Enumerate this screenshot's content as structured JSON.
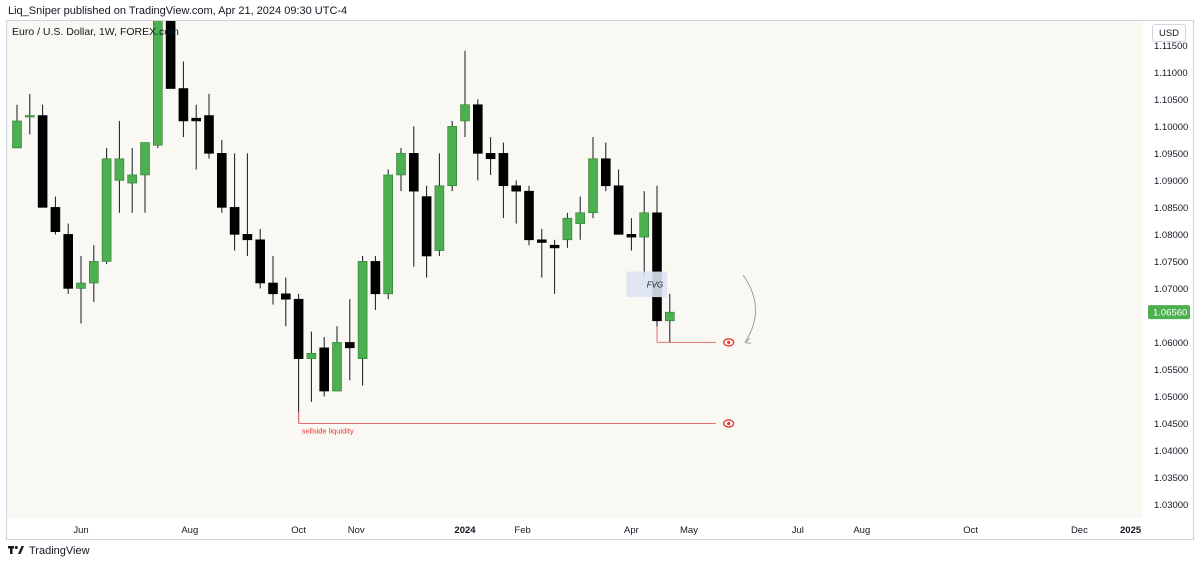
{
  "header": {
    "publish_line": "Liq_Sniper published on TradingView.com, Apr 21, 2024 09:30 UTC-4",
    "symbol_title": "Euro / U.S. Dollar, 1W, FOREX.com",
    "currency": "USD"
  },
  "footer": {
    "brand": "TradingView",
    "logo_icon": "tradingview-logo-icon"
  },
  "colors": {
    "up": "#4caf50",
    "down": "#000000",
    "wick": "#131722",
    "current_price_bg": "#4caf50",
    "liquidity_line": "#e57373",
    "fvg_fill": "#dde3f2",
    "marker": "#e53935",
    "plot_bg": "#faf8f3"
  },
  "chart_data": {
    "type": "candlestick",
    "symbol": "Euro / U.S. Dollar",
    "timeframe": "1W",
    "y_axis": {
      "ticks": [
        "1.11500",
        "1.11000",
        "1.10500",
        "1.10000",
        "1.09500",
        "1.09000",
        "1.08500",
        "1.08000",
        "1.07500",
        "1.07000",
        "1.06500",
        "1.06000",
        "1.05500",
        "1.05000",
        "1.04500",
        "1.04000",
        "1.03500",
        "1.03000"
      ],
      "range": [
        1.0275,
        1.1195
      ]
    },
    "current_price": "1.06560",
    "x_axis": {
      "labels": [
        {
          "text": "Jun",
          "week": 5,
          "bold": false
        },
        {
          "text": "Aug",
          "week": 13.5,
          "bold": false
        },
        {
          "text": "Oct",
          "week": 22,
          "bold": false
        },
        {
          "text": "Nov",
          "week": 26.5,
          "bold": false
        },
        {
          "text": "2024",
          "week": 35,
          "bold": true
        },
        {
          "text": "Feb",
          "week": 39.5,
          "bold": false
        },
        {
          "text": "Apr",
          "week": 48,
          "bold": false
        },
        {
          "text": "May",
          "week": 52.5,
          "bold": false
        },
        {
          "text": "Jul",
          "week": 61,
          "bold": false
        },
        {
          "text": "Aug",
          "week": 66,
          "bold": false
        },
        {
          "text": "Oct",
          "week": 74.5,
          "bold": false
        },
        {
          "text": "Dec",
          "week": 83,
          "bold": false
        },
        {
          "text": "2025",
          "week": 87,
          "bold": true
        }
      ]
    },
    "candles": [
      {
        "o": 1.096,
        "h": 1.104,
        "l": 1.096,
        "c": 1.101
      },
      {
        "o": 1.102,
        "h": 1.106,
        "l": 1.0985,
        "c": 1.102
      },
      {
        "o": 1.102,
        "h": 1.104,
        "l": 1.085,
        "c": 1.085
      },
      {
        "o": 1.085,
        "h": 1.087,
        "l": 1.08,
        "c": 1.0805
      },
      {
        "o": 1.08,
        "h": 1.082,
        "l": 1.069,
        "c": 1.07
      },
      {
        "o": 1.07,
        "h": 1.076,
        "l": 1.0635,
        "c": 1.071
      },
      {
        "o": 1.071,
        "h": 1.078,
        "l": 1.0675,
        "c": 1.075
      },
      {
        "o": 1.075,
        "h": 1.096,
        "l": 1.0745,
        "c": 1.094
      },
      {
        "o": 1.09,
        "h": 1.101,
        "l": 1.084,
        "c": 1.094
      },
      {
        "o": 1.0895,
        "h": 1.096,
        "l": 1.084,
        "c": 1.091
      },
      {
        "o": 1.091,
        "h": 1.097,
        "l": 1.084,
        "c": 1.097
      },
      {
        "o": 1.0965,
        "h": 1.126,
        "l": 1.096,
        "c": 1.122
      },
      {
        "o": 1.122,
        "h": 1.127,
        "l": 1.107,
        "c": 1.107
      },
      {
        "o": 1.107,
        "h": 1.112,
        "l": 1.098,
        "c": 1.101
      },
      {
        "o": 1.1015,
        "h": 1.104,
        "l": 1.092,
        "c": 1.101
      },
      {
        "o": 1.102,
        "h": 1.106,
        "l": 1.094,
        "c": 1.095
      },
      {
        "o": 1.095,
        "h": 1.0975,
        "l": 1.084,
        "c": 1.085
      },
      {
        "o": 1.085,
        "h": 1.095,
        "l": 1.077,
        "c": 1.08
      },
      {
        "o": 1.08,
        "h": 1.095,
        "l": 1.076,
        "c": 1.079
      },
      {
        "o": 1.079,
        "h": 1.081,
        "l": 1.07,
        "c": 1.071
      },
      {
        "o": 1.071,
        "h": 1.076,
        "l": 1.067,
        "c": 1.069
      },
      {
        "o": 1.069,
        "h": 1.072,
        "l": 1.063,
        "c": 1.068
      },
      {
        "o": 1.068,
        "h": 1.069,
        "l": 1.045,
        "c": 1.057
      },
      {
        "o": 1.057,
        "h": 1.062,
        "l": 1.049,
        "c": 1.058
      },
      {
        "o": 1.059,
        "h": 1.061,
        "l": 1.05,
        "c": 1.051
      },
      {
        "o": 1.051,
        "h": 1.063,
        "l": 1.051,
        "c": 1.06
      },
      {
        "o": 1.06,
        "h": 1.068,
        "l": 1.053,
        "c": 1.059
      },
      {
        "o": 1.057,
        "h": 1.076,
        "l": 1.052,
        "c": 1.075
      },
      {
        "o": 1.075,
        "h": 1.076,
        "l": 1.066,
        "c": 1.069
      },
      {
        "o": 1.069,
        "h": 1.092,
        "l": 1.068,
        "c": 1.091
      },
      {
        "o": 1.091,
        "h": 1.096,
        "l": 1.088,
        "c": 1.095
      },
      {
        "o": 1.095,
        "h": 1.1,
        "l": 1.074,
        "c": 1.088
      },
      {
        "o": 1.087,
        "h": 1.089,
        "l": 1.072,
        "c": 1.076
      },
      {
        "o": 1.077,
        "h": 1.095,
        "l": 1.076,
        "c": 1.089
      },
      {
        "o": 1.089,
        "h": 1.101,
        "l": 1.088,
        "c": 1.1
      },
      {
        "o": 1.101,
        "h": 1.114,
        "l": 1.098,
        "c": 1.104
      },
      {
        "o": 1.104,
        "h": 1.105,
        "l": 1.09,
        "c": 1.095
      },
      {
        "o": 1.095,
        "h": 1.098,
        "l": 1.091,
        "c": 1.094
      },
      {
        "o": 1.095,
        "h": 1.097,
        "l": 1.083,
        "c": 1.089
      },
      {
        "o": 1.089,
        "h": 1.09,
        "l": 1.082,
        "c": 1.088
      },
      {
        "o": 1.088,
        "h": 1.089,
        "l": 1.078,
        "c": 1.079
      },
      {
        "o": 1.079,
        "h": 1.081,
        "l": 1.072,
        "c": 1.0785
      },
      {
        "o": 1.078,
        "h": 1.079,
        "l": 1.069,
        "c": 1.0775
      },
      {
        "o": 1.079,
        "h": 1.084,
        "l": 1.0775,
        "c": 1.083
      },
      {
        "o": 1.082,
        "h": 1.087,
        "l": 1.079,
        "c": 1.084
      },
      {
        "o": 1.084,
        "h": 1.098,
        "l": 1.083,
        "c": 1.094
      },
      {
        "o": 1.094,
        "h": 1.097,
        "l": 1.088,
        "c": 1.089
      },
      {
        "o": 1.089,
        "h": 1.092,
        "l": 1.08,
        "c": 1.08
      },
      {
        "o": 1.08,
        "h": 1.083,
        "l": 1.077,
        "c": 1.0795
      },
      {
        "o": 1.0795,
        "h": 1.088,
        "l": 1.072,
        "c": 1.084
      },
      {
        "o": 1.084,
        "h": 1.089,
        "l": 1.062,
        "c": 1.064
      },
      {
        "o": 1.064,
        "h": 1.069,
        "l": 1.06,
        "c": 1.0656
      }
    ],
    "annotations": {
      "fvg": {
        "label": "FVG",
        "week_start": 47.6,
        "week_end": 50.8,
        "top": 1.072,
        "bottom": 1.0695
      },
      "sellside_liquidity": {
        "label": "sellside liquidity",
        "price": 1.045,
        "week_start": 22,
        "week_end": 54.6
      },
      "target_line": {
        "price": 1.06,
        "week_start": 50,
        "week_end": 54.6
      },
      "markers": [
        {
          "name": "target-eye-marker",
          "price": 1.06,
          "week": 55.6
        },
        {
          "name": "liquidity-eye-marker",
          "price": 1.045,
          "week": 55.6
        }
      ],
      "arrow": {
        "from_price": 1.071,
        "to_price": 1.06,
        "week": 57.5
      }
    }
  }
}
